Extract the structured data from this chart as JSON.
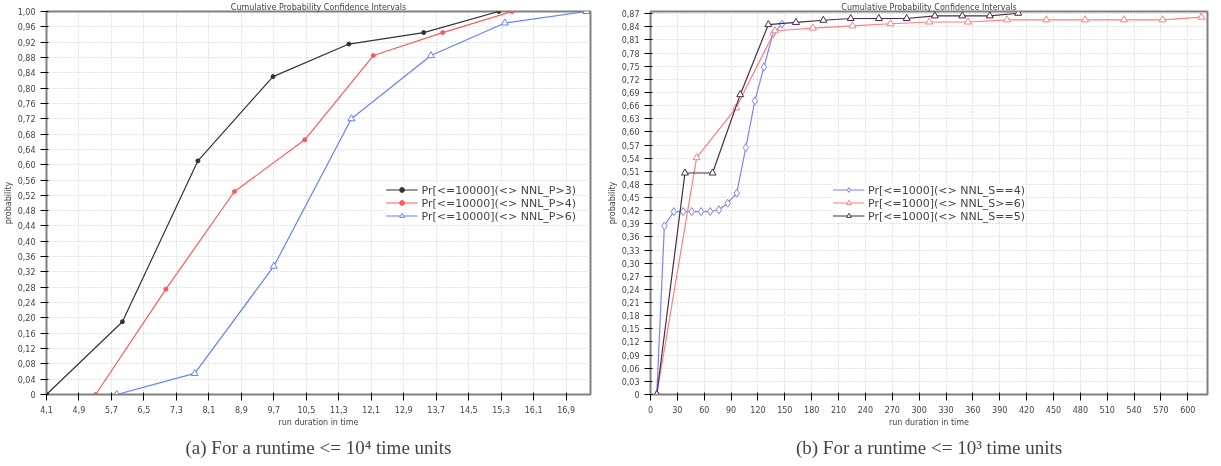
{
  "chart_data": [
    {
      "type": "line",
      "title": "Cumulative Probability Confidence Intervals",
      "xlabel": "run duration in time",
      "ylabel": "probability",
      "annotations": [
        "(a) For a runtime <= 10⁴ time units"
      ],
      "xlim": [
        4.1,
        17.5
      ],
      "ylim": [
        0,
        1.0
      ],
      "xticks": [
        {
          "value": 4.1,
          "label": "4,1"
        },
        {
          "value": 4.9,
          "label": "4,9"
        },
        {
          "value": 5.7,
          "label": "5,7"
        },
        {
          "value": 6.5,
          "label": "6,5"
        },
        {
          "value": 7.3,
          "label": "7,3"
        },
        {
          "value": 8.1,
          "label": "8,1"
        },
        {
          "value": 8.9,
          "label": "8,9"
        },
        {
          "value": 9.7,
          "label": "9,7"
        },
        {
          "value": 10.5,
          "label": "10,5"
        },
        {
          "value": 11.3,
          "label": "11,3"
        },
        {
          "value": 12.1,
          "label": "12,1"
        },
        {
          "value": 12.9,
          "label": "12,9"
        },
        {
          "value": 13.7,
          "label": "13,7"
        },
        {
          "value": 14.5,
          "label": "14,5"
        },
        {
          "value": 15.3,
          "label": "15,3"
        },
        {
          "value": 16.1,
          "label": "16,1"
        },
        {
          "value": 16.9,
          "label": "16,9"
        }
      ],
      "yticks": [
        0,
        {
          "value": 0.04,
          "label": "0,04"
        },
        {
          "value": 0.08,
          "label": "0,08"
        },
        {
          "value": 0.12,
          "label": "0,12"
        },
        {
          "value": 0.16,
          "label": "0,16"
        },
        {
          "value": 0.2,
          "label": "0,20"
        },
        {
          "value": 0.24,
          "label": "0,24"
        },
        {
          "value": 0.28,
          "label": "0,28"
        },
        {
          "value": 0.32,
          "label": "0,32"
        },
        {
          "value": 0.36,
          "label": "0,36"
        },
        {
          "value": 0.4,
          "label": "0,40"
        },
        {
          "value": 0.44,
          "label": "0,44"
        },
        {
          "value": 0.48,
          "label": "0,48"
        },
        {
          "value": 0.52,
          "label": "0,52"
        },
        {
          "value": 0.56,
          "label": "0,56"
        },
        {
          "value": 0.6,
          "label": "0,60"
        },
        {
          "value": 0.64,
          "label": "0,64"
        },
        {
          "value": 0.68,
          "label": "0,68"
        },
        {
          "value": 0.72,
          "label": "0,72"
        },
        {
          "value": 0.76,
          "label": "0,76"
        },
        {
          "value": 0.8,
          "label": "0,80"
        },
        {
          "value": 0.84,
          "label": "0,84"
        },
        {
          "value": 0.88,
          "label": "0,88"
        },
        {
          "value": 0.92,
          "label": "0,92"
        },
        {
          "value": 0.96,
          "label": "0,96"
        },
        {
          "value": 1.0,
          "label": "1,00"
        }
      ],
      "grid": true,
      "legend": "right",
      "line_style": "solid",
      "series": [
        {
          "name": "Pr[<=10000](<> NNL_P>3)",
          "color": "#333333",
          "marker": "circle",
          "x": [
            4.1,
            5.97,
            7.83,
            9.68,
            11.55,
            13.39,
            15.24
          ],
          "values": [
            0,
            0.19,
            0.61,
            0.83,
            0.915,
            0.945,
            1.0
          ]
        },
        {
          "name": "Pr[<=10000](<> NNL_P>4)",
          "color": "#ff5a5a",
          "marker": "circle",
          "x": [
            5.31,
            7.04,
            8.73,
            10.46,
            12.15,
            13.86,
            15.57
          ],
          "values": [
            0,
            0.275,
            0.53,
            0.665,
            0.885,
            0.945,
            1.0
          ]
        },
        {
          "name": "Pr[<=10000](<> NNL_P>6)",
          "color": "#6680ff",
          "marker": "triangle",
          "x": [
            5.83,
            7.75,
            9.7,
            11.61,
            13.57,
            15.39,
            17.4
          ],
          "values": [
            0,
            0.055,
            0.335,
            0.72,
            0.885,
            0.97,
            1.0
          ]
        }
      ]
    },
    {
      "type": "line",
      "title": "Cumulative Probability Confidence Intervals",
      "xlabel": "run duration in time",
      "ylabel": "probability",
      "annotations": [
        "(b) For a runtime <= 10³ time units"
      ],
      "xlim": [
        0,
        622
      ],
      "ylim": [
        0,
        0.875
      ],
      "xticks": [
        0,
        30,
        60,
        90,
        120,
        150,
        180,
        210,
        240,
        270,
        300,
        330,
        360,
        390,
        420,
        450,
        480,
        510,
        540,
        570,
        600
      ],
      "yticks": [
        0,
        {
          "value": 0.03,
          "label": "0,03"
        },
        {
          "value": 0.06,
          "label": "0,06"
        },
        {
          "value": 0.09,
          "label": "0,09"
        },
        {
          "value": 0.12,
          "label": "0,12"
        },
        {
          "value": 0.15,
          "label": "0,15"
        },
        {
          "value": 0.18,
          "label": "0,18"
        },
        {
          "value": 0.21,
          "label": "0,21"
        },
        {
          "value": 0.24,
          "label": "0,24"
        },
        {
          "value": 0.27,
          "label": "0,27"
        },
        {
          "value": 0.3,
          "label": "0,30"
        },
        {
          "value": 0.33,
          "label": "0,33"
        },
        {
          "value": 0.36,
          "label": "0,36"
        },
        {
          "value": 0.39,
          "label": "0,39"
        },
        {
          "value": 0.42,
          "label": "0,42"
        },
        {
          "value": 0.45,
          "label": "0,45"
        },
        {
          "value": 0.48,
          "label": "0,48"
        },
        {
          "value": 0.51,
          "label": "0,51"
        },
        {
          "value": 0.54,
          "label": "0,54"
        },
        {
          "value": 0.57,
          "label": "0,57"
        },
        {
          "value": 0.6,
          "label": "0,60"
        },
        {
          "value": 0.63,
          "label": "0,63"
        },
        {
          "value": 0.66,
          "label": "0,66"
        },
        {
          "value": 0.69,
          "label": "0,69"
        },
        {
          "value": 0.72,
          "label": "0,72"
        },
        {
          "value": 0.75,
          "label": "0,75"
        },
        {
          "value": 0.78,
          "label": "0,78"
        },
        {
          "value": 0.81,
          "label": "0,81"
        },
        {
          "value": 0.84,
          "label": "0,84"
        },
        {
          "value": 0.87,
          "label": "0,87"
        }
      ],
      "grid": true,
      "legend": "center",
      "line_style": "solid",
      "series": [
        {
          "name": "Pr[<=1000](<> NNL_S==4)",
          "color": "#7f7fff",
          "marker": "diamond",
          "x": [
            7,
            15.5,
            26,
            36.4,
            46,
            56.6,
            66.7,
            76.4,
            86.2,
            96.3,
            106.4,
            116.5,
            126.6,
            136.7,
            146.8
          ],
          "values": [
            0,
            0.385,
            0.418,
            0.418,
            0.418,
            0.418,
            0.418,
            0.422,
            0.437,
            0.46,
            0.564,
            0.671,
            0.748,
            0.824,
            0.846
          ]
        },
        {
          "name": "Pr[<=1000](<> NNL_S>=6)",
          "color": "#ff7f7f",
          "marker": "triangle",
          "x": [
            7,
            51.5,
            95.6,
            138.9,
            181.4,
            225.5,
            268,
            311.3,
            354.6,
            398,
            442,
            485.3,
            528.6,
            571.9,
            615.2
          ],
          "values": [
            0,
            0.541,
            0.655,
            0.831,
            0.837,
            0.842,
            0.847,
            0.851,
            0.851,
            0.856,
            0.856,
            0.856,
            0.856,
            0.856,
            0.862
          ]
        },
        {
          "name": "Pr[<=1000](<> NNL_S==5)",
          "color": "#4b2a4b",
          "marker": "triangle",
          "x": [
            7,
            38.5,
            69.3,
            100.2,
            131.6,
            162.4,
            193,
            223.6,
            255,
            286.1,
            317.5,
            348.2,
            378.9,
            410.6
          ],
          "values": [
            0,
            0.506,
            0.506,
            0.685,
            0.845,
            0.85,
            0.855,
            0.859,
            0.859,
            0.859,
            0.865,
            0.865,
            0.865,
            0.871
          ]
        }
      ]
    }
  ]
}
